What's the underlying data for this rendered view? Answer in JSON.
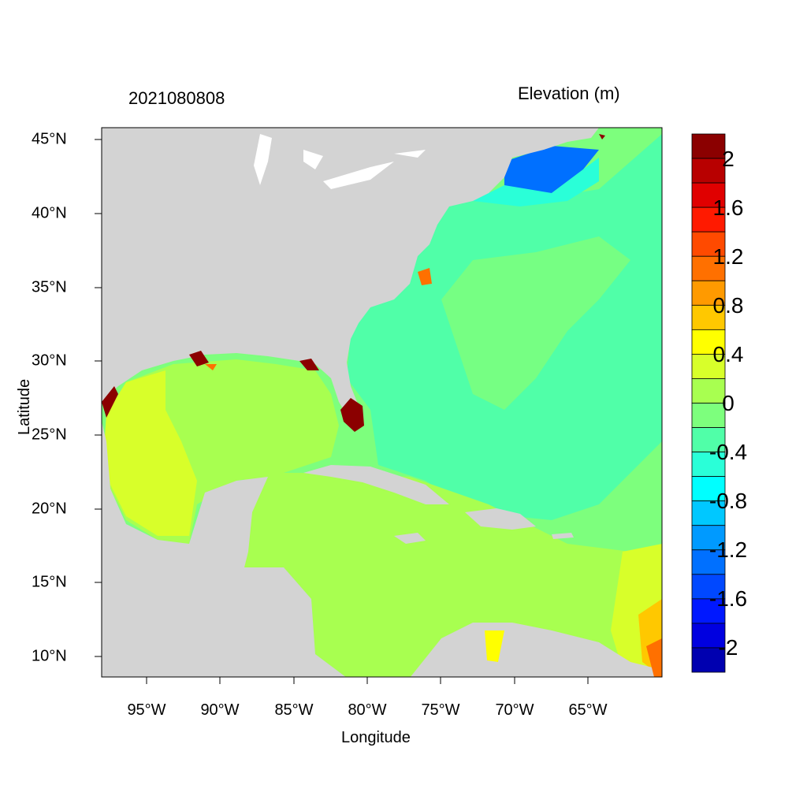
{
  "header": {
    "date_label": "2021080808",
    "variable_label": "Elevation (m)"
  },
  "axes": {
    "xlabel": "Longitude",
    "ylabel": "Latitude",
    "x_ticks": [
      "95°W",
      "90°W",
      "85°W",
      "80°W",
      "75°W",
      "70°W",
      "65°W"
    ],
    "y_ticks": [
      "45°N",
      "40°N",
      "35°N",
      "30°N",
      "25°N",
      "20°N",
      "15°N",
      "10°N"
    ]
  },
  "map": {
    "lon_range": [
      -98,
      -60
    ],
    "lat_range": [
      8.5,
      45.8
    ],
    "land_color": "#d3d3d3",
    "background_sea_color": "#7dff7d"
  },
  "colorbar": {
    "labels": [
      "2",
      "1.6",
      "1.2",
      "0.8",
      "0.4",
      "0",
      "-0.4",
      "-0.8",
      "-1.2",
      "-1.6",
      "-2"
    ],
    "colors": [
      "#8b0000",
      "#b80000",
      "#e00000",
      "#ff1a00",
      "#ff4a00",
      "#ff7000",
      "#ff9a00",
      "#ffc800",
      "#ffff00",
      "#d8ff2a",
      "#a8ff50",
      "#7dff7d",
      "#50ffa8",
      "#2affd8",
      "#00ffff",
      "#00c8ff",
      "#009aff",
      "#0070ff",
      "#0048ff",
      "#0018ff",
      "#0000e0",
      "#0000b0"
    ]
  }
}
